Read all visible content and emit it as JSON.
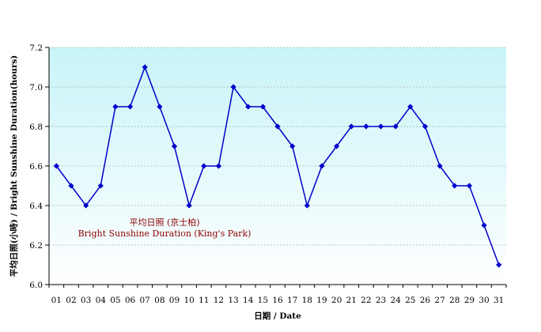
{
  "chart_data": {
    "type": "line",
    "x": [
      "01",
      "02",
      "03",
      "04",
      "05",
      "06",
      "07",
      "08",
      "09",
      "10",
      "11",
      "12",
      "13",
      "14",
      "15",
      "16",
      "17",
      "18",
      "19",
      "20",
      "21",
      "22",
      "23",
      "24",
      "25",
      "26",
      "27",
      "28",
      "29",
      "30",
      "31"
    ],
    "series": [
      {
        "values": [
          6.6,
          6.5,
          6.4,
          6.5,
          6.9,
          6.9,
          7.1,
          6.9,
          6.7,
          6.4,
          6.6,
          6.6,
          7.0,
          6.9,
          6.9,
          6.8,
          6.7,
          6.4,
          6.6,
          6.7,
          6.8,
          6.8,
          6.8,
          6.8,
          6.9,
          6.8,
          6.6,
          6.5,
          6.5,
          6.3,
          6.1
        ],
        "color": "#0000cc"
      }
    ],
    "ylim": [
      6.0,
      7.2
    ],
    "yticks": [
      "6.0",
      "6.2",
      "6.4",
      "6.6",
      "6.8",
      "7.0",
      "7.2"
    ],
    "ytick_values": [
      6.0,
      6.2,
      6.4,
      6.6,
      6.8,
      7.0,
      7.2
    ],
    "xlabel": "日期 / Date",
    "ylabel": "平均日照(小時) / Bright Sunshine Duration(hours)",
    "annotation": {
      "line1": "平均日照 (京士柏)",
      "line2": "Bright Sunshine Duration (King's Park)",
      "color": "#8b0000"
    },
    "grid": true,
    "background": {
      "top": "#c8f4f8",
      "bottom": "#ffffff"
    }
  }
}
